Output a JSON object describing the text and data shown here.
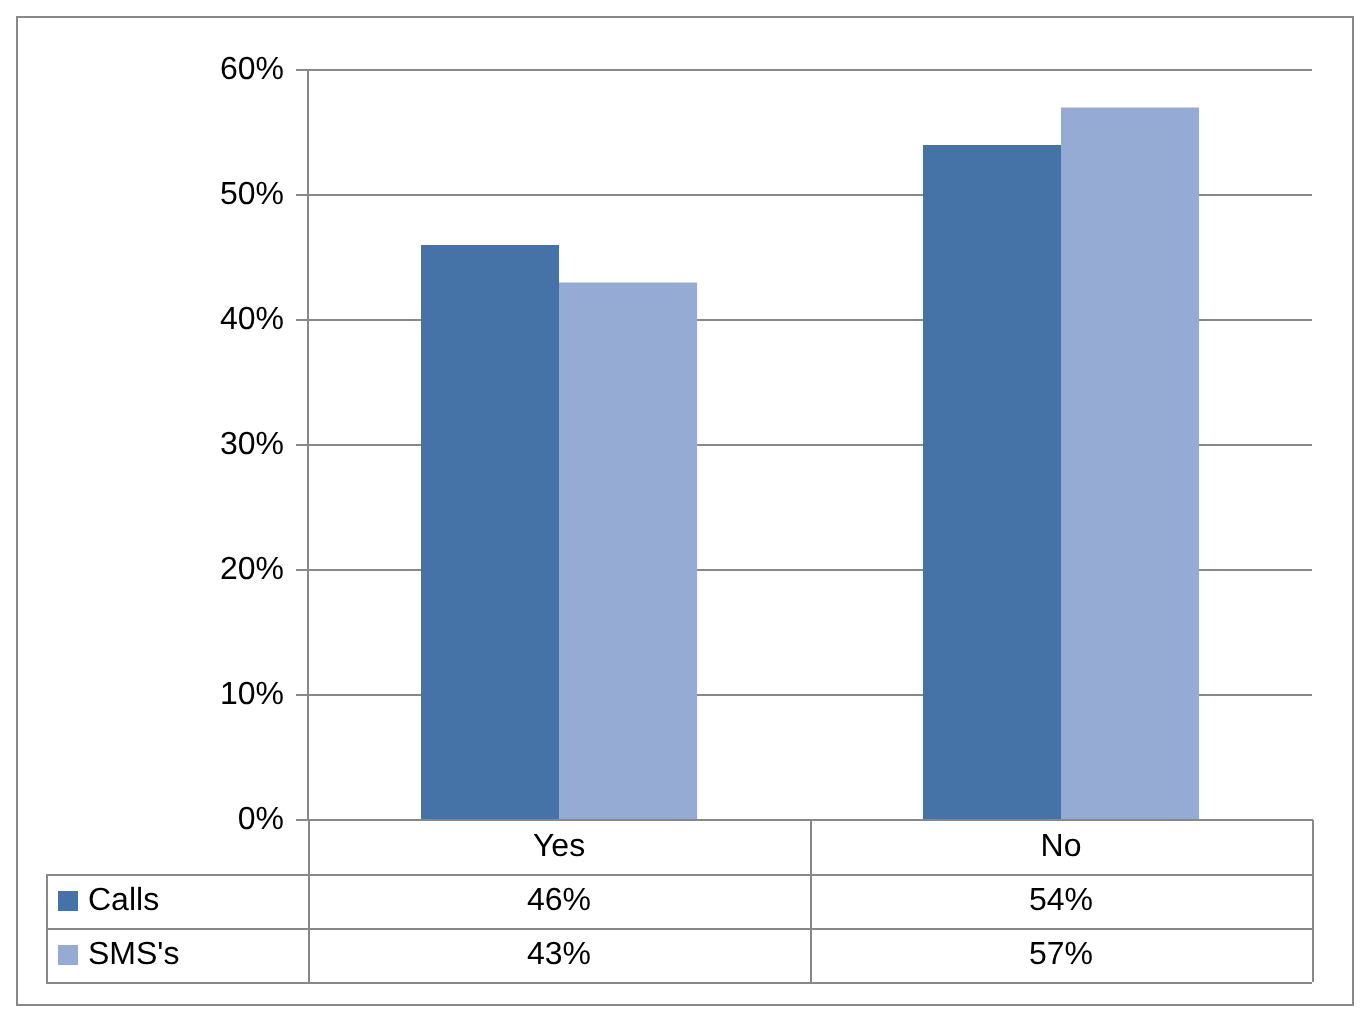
{
  "chart_data": {
    "type": "bar",
    "categories": [
      "Yes",
      "No"
    ],
    "series": [
      {
        "name": "Calls",
        "color": "#4572a7",
        "values": [
          46,
          54
        ],
        "value_labels": [
          "46%",
          "54%"
        ]
      },
      {
        "name": "SMS's",
        "color": "#95abd3",
        "values": [
          43,
          57
        ],
        "value_labels": [
          "43%",
          "57%"
        ]
      }
    ],
    "ylim": [
      0,
      60
    ],
    "yticks": [
      {
        "value": 0,
        "label": "0%"
      },
      {
        "value": 10,
        "label": "10%"
      },
      {
        "value": 20,
        "label": "20%"
      },
      {
        "value": 30,
        "label": "30%"
      },
      {
        "value": 40,
        "label": "40%"
      },
      {
        "value": 50,
        "label": "50%"
      },
      {
        "value": 60,
        "label": "60%"
      }
    ],
    "grid": "y",
    "legend": "bottom"
  }
}
